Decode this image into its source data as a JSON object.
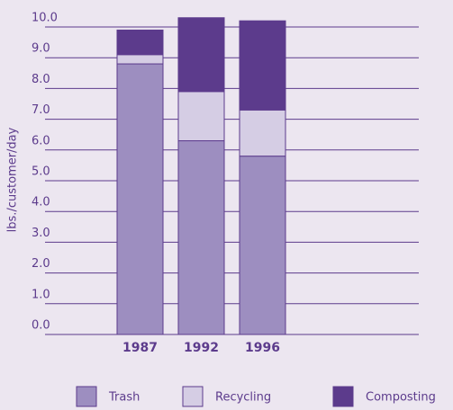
{
  "chart_data": {
    "type": "stacked_bar",
    "y_label": "lbs./customer/day",
    "categories": [
      "1987",
      "1992",
      "1996"
    ],
    "series": [
      {
        "name": "Trash",
        "color": "#9d8ec0",
        "values": [
          8.8,
          6.3,
          5.8
        ]
      },
      {
        "name": "Recycling",
        "color": "#d5cde4",
        "values": [
          0.3,
          1.6,
          1.5
        ]
      },
      {
        "name": "Composting",
        "color": "#5c3b8c",
        "values": [
          0.8,
          2.4,
          2.9
        ]
      }
    ],
    "ylim": [
      0,
      10
    ],
    "yticks": [
      {
        "value": 0,
        "label": "0.0"
      },
      {
        "value": 1,
        "label": "1.0"
      },
      {
        "value": 2,
        "label": "2.0"
      },
      {
        "value": 3,
        "label": "3.0"
      },
      {
        "value": 4,
        "label": "4.0"
      },
      {
        "value": 5,
        "label": "5.0"
      },
      {
        "value": 6,
        "label": "6.0"
      },
      {
        "value": 7,
        "label": "7.0"
      },
      {
        "value": 8,
        "label": "8.0"
      },
      {
        "value": 9,
        "label": "9.0"
      },
      {
        "value": 10,
        "label": "10.0"
      }
    ],
    "grid": true
  }
}
